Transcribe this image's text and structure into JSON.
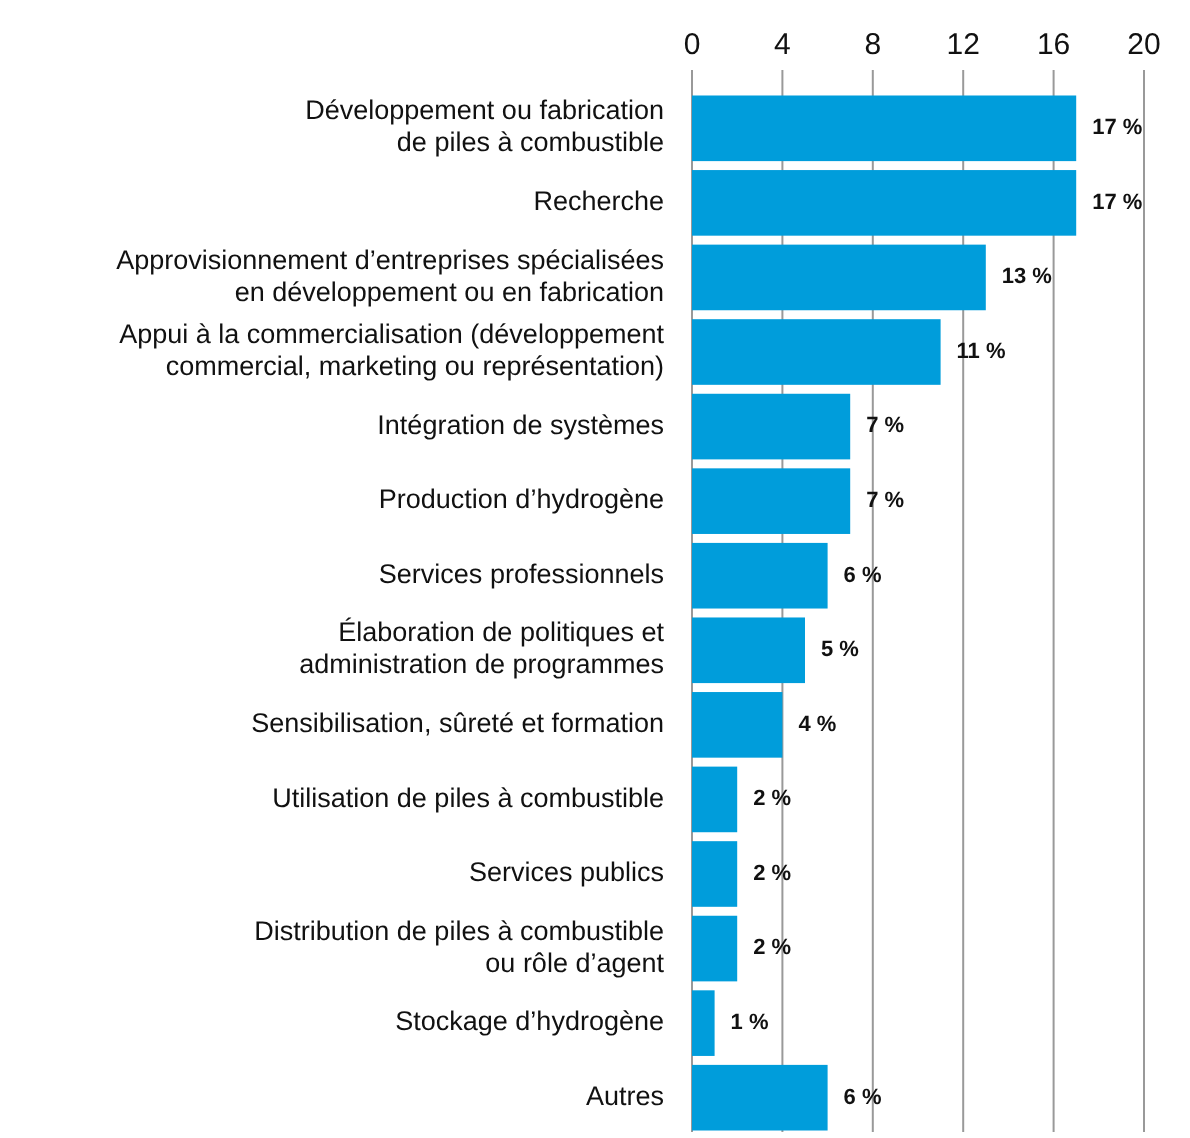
{
  "chart_data": {
    "type": "bar",
    "orientation": "horizontal",
    "categories": [
      "Développement ou fabrication\nde piles à combustible",
      "Recherche",
      "Approvisionnement d’entreprises spécialisées\nen développement ou en fabrication",
      "Appui à la commercialisation (développement\ncommercial, marketing ou représentation)",
      "Intégration de systèmes",
      "Production d’hydrogène",
      "Services professionnels",
      "Élaboration de politiques et\nadministration de programmes",
      "Sensibilisation, sûreté et formation",
      "Utilisation de piles à combustible",
      "Services publics",
      "Distribution de piles à combustible\nou rôle d’agent",
      "Stockage d’hydrogène",
      "Autres"
    ],
    "values": [
      17,
      17,
      13,
      11,
      7,
      7,
      6,
      5,
      4,
      2,
      2,
      2,
      1,
      6
    ],
    "value_labels": [
      "17 %",
      "17 %",
      "13 %",
      "11 %",
      "7 %",
      "7 %",
      "6 %",
      "5 %",
      "4 %",
      "2 %",
      "2 %",
      "2 %",
      "1 %",
      "6 %"
    ],
    "color": "#009ddb",
    "xlim": [
      0,
      20
    ],
    "xticks": [
      0,
      4,
      8,
      12,
      16,
      20
    ],
    "grid": "x"
  }
}
